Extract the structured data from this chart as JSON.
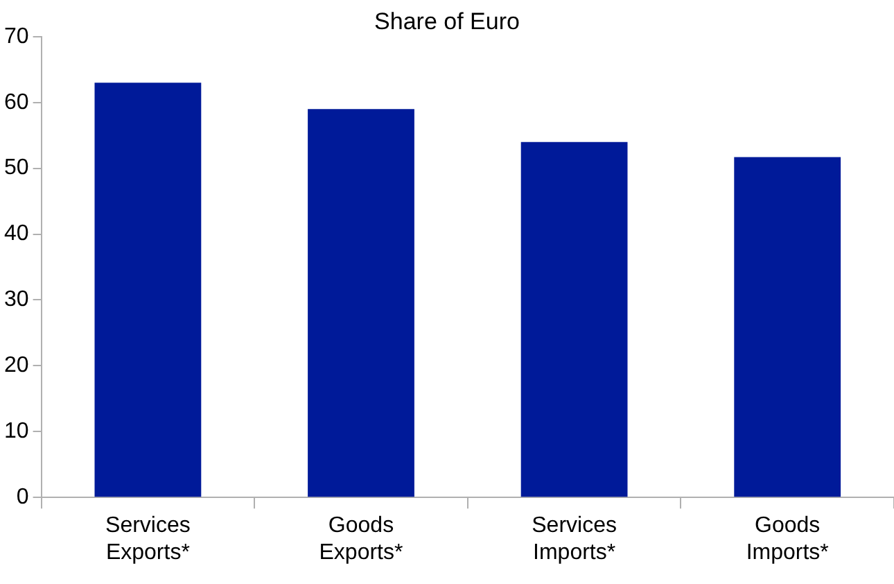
{
  "chart_data": {
    "type": "bar",
    "title": "Share of Euro",
    "categories": [
      "Services Exports*",
      "Goods Exports*",
      "Services Imports*",
      "Goods Imports*"
    ],
    "values": [
      63,
      59,
      54,
      51.7
    ],
    "color": "#001a99",
    "ylim": [
      0,
      70
    ],
    "yticks": [
      0,
      10,
      20,
      30,
      40,
      50,
      60,
      70
    ],
    "grid": false,
    "legend": false
  }
}
